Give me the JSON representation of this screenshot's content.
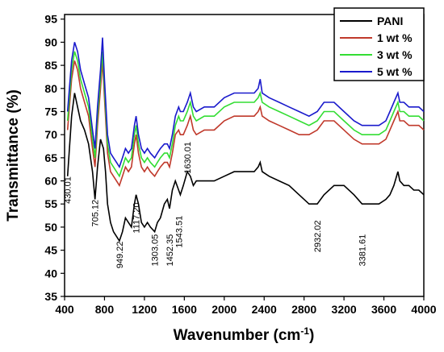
{
  "chart_data": {
    "type": "line",
    "xlabel": "Wavenumber (cm",
    "xlabel_sup": "-1",
    "xlabel_close": ")",
    "ylabel": "Transmittance (%)",
    "xlim": [
      400,
      4000
    ],
    "ylim": [
      35,
      96
    ],
    "xticks": [
      400,
      800,
      1200,
      1600,
      2000,
      2400,
      2800,
      3200,
      3600,
      4000
    ],
    "yticks": [
      35,
      40,
      45,
      50,
      55,
      60,
      65,
      70,
      75,
      80,
      85,
      90,
      95
    ],
    "grid": false,
    "legend_position": "top-right",
    "series": [
      {
        "name": "PANI",
        "color": "#000000",
        "points": [
          [
            430,
            61
          ],
          [
            470,
            74
          ],
          [
            500,
            79
          ],
          [
            530,
            76
          ],
          [
            560,
            73
          ],
          [
            600,
            71
          ],
          [
            640,
            68
          ],
          [
            680,
            62
          ],
          [
            705,
            56
          ],
          [
            730,
            63
          ],
          [
            760,
            69
          ],
          [
            790,
            67
          ],
          [
            810,
            62
          ],
          [
            830,
            55
          ],
          [
            860,
            51
          ],
          [
            890,
            49
          ],
          [
            920,
            48
          ],
          [
            949,
            47
          ],
          [
            980,
            49
          ],
          [
            1010,
            52
          ],
          [
            1040,
            51
          ],
          [
            1070,
            50
          ],
          [
            1100,
            55
          ],
          [
            1117,
            57
          ],
          [
            1140,
            55
          ],
          [
            1170,
            51
          ],
          [
            1200,
            50
          ],
          [
            1230,
            51
          ],
          [
            1260,
            50
          ],
          [
            1303,
            49
          ],
          [
            1330,
            51
          ],
          [
            1360,
            52
          ],
          [
            1400,
            55
          ],
          [
            1430,
            56
          ],
          [
            1452,
            54
          ],
          [
            1480,
            58
          ],
          [
            1510,
            60
          ],
          [
            1543,
            58
          ],
          [
            1560,
            57
          ],
          [
            1590,
            59
          ],
          [
            1630,
            62
          ],
          [
            1660,
            61
          ],
          [
            1690,
            59
          ],
          [
            1720,
            60
          ],
          [
            1800,
            60
          ],
          [
            1900,
            60
          ],
          [
            2000,
            61
          ],
          [
            2100,
            62
          ],
          [
            2200,
            62
          ],
          [
            2300,
            62
          ],
          [
            2340,
            63
          ],
          [
            2360,
            64
          ],
          [
            2380,
            62
          ],
          [
            2450,
            61
          ],
          [
            2550,
            60
          ],
          [
            2650,
            59
          ],
          [
            2750,
            57
          ],
          [
            2850,
            55
          ],
          [
            2932,
            55
          ],
          [
            3000,
            57
          ],
          [
            3100,
            59
          ],
          [
            3200,
            59
          ],
          [
            3300,
            57
          ],
          [
            3381,
            55
          ],
          [
            3450,
            55
          ],
          [
            3550,
            55
          ],
          [
            3620,
            56
          ],
          [
            3660,
            57
          ],
          [
            3700,
            59
          ],
          [
            3740,
            62
          ],
          [
            3760,
            60
          ],
          [
            3800,
            59
          ],
          [
            3850,
            59
          ],
          [
            3900,
            58
          ],
          [
            3950,
            58
          ],
          [
            4000,
            57
          ]
        ]
      },
      {
        "name": "1 wt %",
        "color": "#c0392b",
        "points": [
          [
            430,
            71
          ],
          [
            470,
            82
          ],
          [
            500,
            86
          ],
          [
            530,
            84
          ],
          [
            560,
            80
          ],
          [
            600,
            77
          ],
          [
            640,
            74
          ],
          [
            680,
            67
          ],
          [
            705,
            63
          ],
          [
            730,
            72
          ],
          [
            760,
            80
          ],
          [
            780,
            86
          ],
          [
            800,
            78
          ],
          [
            830,
            66
          ],
          [
            860,
            62
          ],
          [
            890,
            61
          ],
          [
            920,
            60
          ],
          [
            949,
            59
          ],
          [
            980,
            61
          ],
          [
            1010,
            63
          ],
          [
            1040,
            62
          ],
          [
            1070,
            63
          ],
          [
            1100,
            68
          ],
          [
            1117,
            70
          ],
          [
            1140,
            66
          ],
          [
            1170,
            63
          ],
          [
            1200,
            62
          ],
          [
            1230,
            63
          ],
          [
            1260,
            62
          ],
          [
            1303,
            61
          ],
          [
            1330,
            62
          ],
          [
            1360,
            63
          ],
          [
            1400,
            64
          ],
          [
            1430,
            64
          ],
          [
            1452,
            63
          ],
          [
            1480,
            66
          ],
          [
            1510,
            70
          ],
          [
            1543,
            71
          ],
          [
            1560,
            70
          ],
          [
            1590,
            70
          ],
          [
            1630,
            72
          ],
          [
            1660,
            74
          ],
          [
            1690,
            71
          ],
          [
            1720,
            70
          ],
          [
            1800,
            71
          ],
          [
            1900,
            71
          ],
          [
            2000,
            73
          ],
          [
            2100,
            74
          ],
          [
            2200,
            74
          ],
          [
            2300,
            74
          ],
          [
            2340,
            75
          ],
          [
            2360,
            76
          ],
          [
            2380,
            74
          ],
          [
            2450,
            73
          ],
          [
            2550,
            72
          ],
          [
            2650,
            71
          ],
          [
            2750,
            70
          ],
          [
            2850,
            70
          ],
          [
            2932,
            71
          ],
          [
            3000,
            73
          ],
          [
            3100,
            73
          ],
          [
            3200,
            71
          ],
          [
            3300,
            69
          ],
          [
            3381,
            68
          ],
          [
            3450,
            68
          ],
          [
            3550,
            68
          ],
          [
            3620,
            69
          ],
          [
            3660,
            71
          ],
          [
            3700,
            73
          ],
          [
            3740,
            75
          ],
          [
            3760,
            73
          ],
          [
            3800,
            73
          ],
          [
            3850,
            72
          ],
          [
            3900,
            72
          ],
          [
            3950,
            72
          ],
          [
            4000,
            71
          ]
        ]
      },
      {
        "name": "3 wt %",
        "color": "#33dd33",
        "points": [
          [
            430,
            73
          ],
          [
            470,
            84
          ],
          [
            500,
            88
          ],
          [
            530,
            86
          ],
          [
            560,
            82
          ],
          [
            600,
            79
          ],
          [
            640,
            76
          ],
          [
            680,
            69
          ],
          [
            705,
            65
          ],
          [
            730,
            74
          ],
          [
            760,
            82
          ],
          [
            780,
            88
          ],
          [
            800,
            80
          ],
          [
            830,
            68
          ],
          [
            860,
            64
          ],
          [
            890,
            63
          ],
          [
            920,
            62
          ],
          [
            949,
            61
          ],
          [
            980,
            63
          ],
          [
            1010,
            65
          ],
          [
            1040,
            64
          ],
          [
            1070,
            65
          ],
          [
            1100,
            70
          ],
          [
            1117,
            72
          ],
          [
            1140,
            68
          ],
          [
            1170,
            65
          ],
          [
            1200,
            64
          ],
          [
            1230,
            65
          ],
          [
            1260,
            64
          ],
          [
            1303,
            63
          ],
          [
            1330,
            64
          ],
          [
            1360,
            65
          ],
          [
            1400,
            66
          ],
          [
            1430,
            66
          ],
          [
            1452,
            65
          ],
          [
            1480,
            68
          ],
          [
            1510,
            72
          ],
          [
            1543,
            74
          ],
          [
            1560,
            73
          ],
          [
            1590,
            73
          ],
          [
            1630,
            75
          ],
          [
            1660,
            77
          ],
          [
            1690,
            74
          ],
          [
            1720,
            73
          ],
          [
            1800,
            74
          ],
          [
            1900,
            74
          ],
          [
            2000,
            76
          ],
          [
            2100,
            77
          ],
          [
            2200,
            77
          ],
          [
            2300,
            77
          ],
          [
            2340,
            78
          ],
          [
            2360,
            79
          ],
          [
            2380,
            77
          ],
          [
            2450,
            76
          ],
          [
            2550,
            75
          ],
          [
            2650,
            74
          ],
          [
            2750,
            73
          ],
          [
            2850,
            72
          ],
          [
            2932,
            73
          ],
          [
            3000,
            75
          ],
          [
            3100,
            75
          ],
          [
            3200,
            73
          ],
          [
            3300,
            71
          ],
          [
            3381,
            70
          ],
          [
            3450,
            70
          ],
          [
            3550,
            70
          ],
          [
            3620,
            71
          ],
          [
            3660,
            73
          ],
          [
            3700,
            75
          ],
          [
            3740,
            77
          ],
          [
            3760,
            75
          ],
          [
            3800,
            75
          ],
          [
            3850,
            74
          ],
          [
            3900,
            74
          ],
          [
            3950,
            74
          ],
          [
            4000,
            73
          ]
        ]
      },
      {
        "name": "5 wt %",
        "color": "#1a1acc",
        "points": [
          [
            430,
            75
          ],
          [
            470,
            86
          ],
          [
            500,
            90
          ],
          [
            530,
            88
          ],
          [
            560,
            84
          ],
          [
            600,
            81
          ],
          [
            640,
            78
          ],
          [
            680,
            71
          ],
          [
            705,
            67
          ],
          [
            730,
            76
          ],
          [
            760,
            84
          ],
          [
            780,
            91
          ],
          [
            800,
            82
          ],
          [
            830,
            70
          ],
          [
            860,
            66
          ],
          [
            890,
            65
          ],
          [
            920,
            64
          ],
          [
            949,
            63
          ],
          [
            980,
            65
          ],
          [
            1010,
            67
          ],
          [
            1040,
            66
          ],
          [
            1070,
            67
          ],
          [
            1100,
            72
          ],
          [
            1117,
            74
          ],
          [
            1140,
            70
          ],
          [
            1170,
            67
          ],
          [
            1200,
            66
          ],
          [
            1230,
            67
          ],
          [
            1260,
            66
          ],
          [
            1303,
            65
          ],
          [
            1330,
            66
          ],
          [
            1360,
            67
          ],
          [
            1400,
            68
          ],
          [
            1430,
            68
          ],
          [
            1452,
            67
          ],
          [
            1480,
            70
          ],
          [
            1510,
            74
          ],
          [
            1543,
            76
          ],
          [
            1560,
            75
          ],
          [
            1590,
            75
          ],
          [
            1630,
            77
          ],
          [
            1660,
            79
          ],
          [
            1690,
            76
          ],
          [
            1720,
            75
          ],
          [
            1800,
            76
          ],
          [
            1900,
            76
          ],
          [
            2000,
            78
          ],
          [
            2100,
            79
          ],
          [
            2200,
            79
          ],
          [
            2300,
            79
          ],
          [
            2340,
            80
          ],
          [
            2360,
            82
          ],
          [
            2380,
            79
          ],
          [
            2450,
            78
          ],
          [
            2550,
            77
          ],
          [
            2650,
            76
          ],
          [
            2750,
            75
          ],
          [
            2850,
            74
          ],
          [
            2932,
            75
          ],
          [
            3000,
            77
          ],
          [
            3100,
            77
          ],
          [
            3200,
            75
          ],
          [
            3300,
            73
          ],
          [
            3381,
            72
          ],
          [
            3450,
            72
          ],
          [
            3550,
            72
          ],
          [
            3620,
            73
          ],
          [
            3660,
            75
          ],
          [
            3700,
            77
          ],
          [
            3740,
            79
          ],
          [
            3760,
            77
          ],
          [
            3800,
            77
          ],
          [
            3850,
            76
          ],
          [
            3900,
            76
          ],
          [
            3950,
            76
          ],
          [
            4000,
            75
          ]
        ]
      }
    ],
    "annotations": [
      {
        "text": "430.01",
        "x": 430,
        "y": 58
      },
      {
        "text": "705.12",
        "x": 705,
        "y": 53
      },
      {
        "text": "949.22",
        "x": 949,
        "y": 44
      },
      {
        "text": "1117.20",
        "x": 1117,
        "y": 52
      },
      {
        "text": "1303.05",
        "x": 1303,
        "y": 45
      },
      {
        "text": "1452.35",
        "x": 1452,
        "y": 45
      },
      {
        "text": "1543.51",
        "x": 1543,
        "y": 49
      },
      {
        "text": "1630.01",
        "x": 1630,
        "y": 65
      },
      {
        "text": "2932.02",
        "x": 2932,
        "y": 48
      },
      {
        "text": "3381.61",
        "x": 3381,
        "y": 45
      }
    ]
  }
}
